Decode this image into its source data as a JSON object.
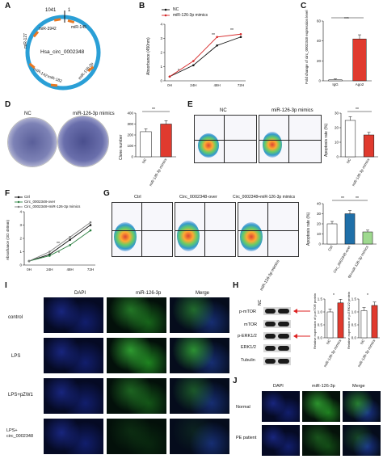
{
  "panel_letters": {
    "A": "A",
    "B": "B",
    "C": "C",
    "D": "D",
    "E": "E",
    "F": "F",
    "G": "G",
    "H": "H",
    "I": "I",
    "J": "J"
  },
  "panelA": {
    "pos_1041": "1041",
    "pos_1": "1",
    "circ_name": "Hsa_circ_0002348",
    "mirnas": [
      "miR-145",
      "miR-3942",
      "miR-127",
      "miR-142",
      "miR-182",
      "miR-126-3p"
    ]
  },
  "panelB": {
    "legend": [
      "NC",
      "miR-126-3p mimics"
    ],
    "ylabel": "Absorbance (450nm)",
    "xticks": [
      "0H",
      "24H",
      "48H",
      "72H"
    ],
    "yticks": [
      "0",
      "1",
      "2",
      "3",
      "4"
    ],
    "sig": [
      "*",
      "**",
      "**"
    ]
  },
  "panelC": {
    "ylabel": "Fold change of circ_0002348 expression level",
    "xticks": [
      "IgG",
      "Ago2"
    ],
    "yticks": [
      "0",
      "20",
      "40",
      "60"
    ],
    "sig": "***"
  },
  "panelD": {
    "labels": [
      "NC",
      "miR-126-3p mimics"
    ],
    "ylabel": "Clone number",
    "yticks": [
      "0",
      "100",
      "200",
      "300",
      "400"
    ],
    "xticks": [
      "NC",
      "miR-126-3p mimics"
    ],
    "sig": "**"
  },
  "panelE": {
    "labels": [
      "NC",
      "miR-126-3p mimics"
    ],
    "ylabel": "Apoptosis rate (%)",
    "yticks": [
      "0",
      "10",
      "20",
      "30"
    ],
    "xticks": [
      "NC",
      "miR-126-3p mimics"
    ],
    "sig": "**"
  },
  "panelF": {
    "legend": [
      "Ctrl",
      "Circ_0002348-over",
      "Circ_0002348+miR-126-3p mimics"
    ],
    "ylabel": "Absorbance (OD 450nm)",
    "xticks": [
      "0H",
      "24H",
      "48H",
      "72H"
    ],
    "yticks": [
      "0",
      "1",
      "2",
      "3",
      "4"
    ],
    "sig": [
      "**",
      "*"
    ]
  },
  "panelG": {
    "labels": [
      "Ctrl",
      "Circ_0002348-over",
      "Circ_0002348+miR-126-3p mimics"
    ],
    "ylabel": "Apoptosis rate (%)",
    "yticks": [
      "0",
      "10",
      "20",
      "30",
      "40"
    ],
    "xticks": [
      "Ctrl",
      "Circ_0002348-over",
      "Circ_0002348+miR-126-3p mimics"
    ],
    "sig": [
      "**",
      "**"
    ]
  },
  "panelI": {
    "cols": [
      "DAPI",
      "miR-126-3p",
      "Merge"
    ],
    "rows": [
      "control",
      "LPS",
      "LPS+pZW1",
      "LPS+ circ_0002348"
    ]
  },
  "panelH": {
    "cols": [
      "NC",
      "miR-126-3p mimics"
    ],
    "bands": [
      "p-mTOR",
      "mTOR",
      "p-ERK1/2",
      "ERK1/2",
      "Tubulin"
    ],
    "chart1": {
      "ylabel": "Relative expression of p-mTOR protein",
      "xticks": [
        "NC",
        "miR-126-3p mimics"
      ],
      "yticks": [
        "0.0",
        "0.5",
        "1.0",
        "1.5"
      ],
      "sig": "*"
    },
    "chart2": {
      "ylabel": "Relative expression of p-ERK1/2 protein",
      "xticks": [
        "NC",
        "miR-126-3p mimics"
      ],
      "yticks": [
        "0.0",
        "0.5",
        "1.0",
        "1.5"
      ],
      "sig": "*"
    }
  },
  "panelJ": {
    "cols": [
      "DAPI",
      "miR-126-3p",
      "Merge"
    ],
    "rows": [
      "Normal",
      "PE patient"
    ]
  },
  "colors": {
    "nc": "#111111",
    "mimic": "#d62728",
    "ctrl": "#111111",
    "over": "#2a7f3f",
    "combo": "#7f7f7f",
    "bar_red": "#e03a2e",
    "bar_blue": "#1f6fa8",
    "bar_green": "#9ed98f",
    "bar_white": "#ffffff"
  },
  "chart_data": [
    {
      "type": "line",
      "id": "B",
      "x": [
        "0H",
        "24H",
        "48H",
        "72H"
      ],
      "ylim": [
        0,
        4
      ],
      "series": [
        {
          "name": "NC",
          "values": [
            0.3,
            1.1,
            2.5,
            3.1
          ]
        },
        {
          "name": "miR-126-3p mimics",
          "values": [
            0.3,
            1.4,
            3.1,
            3.3
          ]
        }
      ]
    },
    {
      "type": "bar",
      "id": "C",
      "categories": [
        "IgG",
        "Ago2"
      ],
      "values": [
        1,
        42
      ],
      "ylim": [
        0,
        60
      ]
    },
    {
      "type": "bar",
      "id": "D",
      "categories": [
        "NC",
        "miR-126-3p mimics"
      ],
      "values": [
        230,
        300
      ],
      "ylim": [
        0,
        400
      ]
    },
    {
      "type": "bar",
      "id": "E",
      "categories": [
        "NC",
        "miR-126-3p mimics"
      ],
      "values": [
        25,
        15
      ],
      "ylim": [
        0,
        30
      ]
    },
    {
      "type": "line",
      "id": "F",
      "x": [
        "0H",
        "24H",
        "48H",
        "72H"
      ],
      "ylim": [
        0,
        4
      ],
      "series": [
        {
          "name": "Ctrl",
          "values": [
            0.3,
            0.8,
            1.9,
            3.0
          ]
        },
        {
          "name": "Circ_0002348-over",
          "values": [
            0.3,
            0.7,
            1.5,
            2.6
          ]
        },
        {
          "name": "Circ_0002348+miR-126-3p mimics",
          "values": [
            0.3,
            1.0,
            2.1,
            3.2
          ]
        }
      ]
    },
    {
      "type": "bar",
      "id": "G",
      "categories": [
        "Ctrl",
        "Circ_0002348-over",
        "Circ_0002348+miR-126-3p mimics"
      ],
      "values": [
        20,
        30,
        12
      ],
      "ylim": [
        0,
        40
      ]
    },
    {
      "type": "bar",
      "id": "H1",
      "categories": [
        "NC",
        "miR-126-3p mimics"
      ],
      "values": [
        1.0,
        1.35
      ],
      "ylim": [
        0,
        1.5
      ]
    },
    {
      "type": "bar",
      "id": "H2",
      "categories": [
        "NC",
        "miR-126-3p mimics"
      ],
      "values": [
        1.05,
        1.25
      ],
      "ylim": [
        0,
        1.5
      ]
    }
  ]
}
